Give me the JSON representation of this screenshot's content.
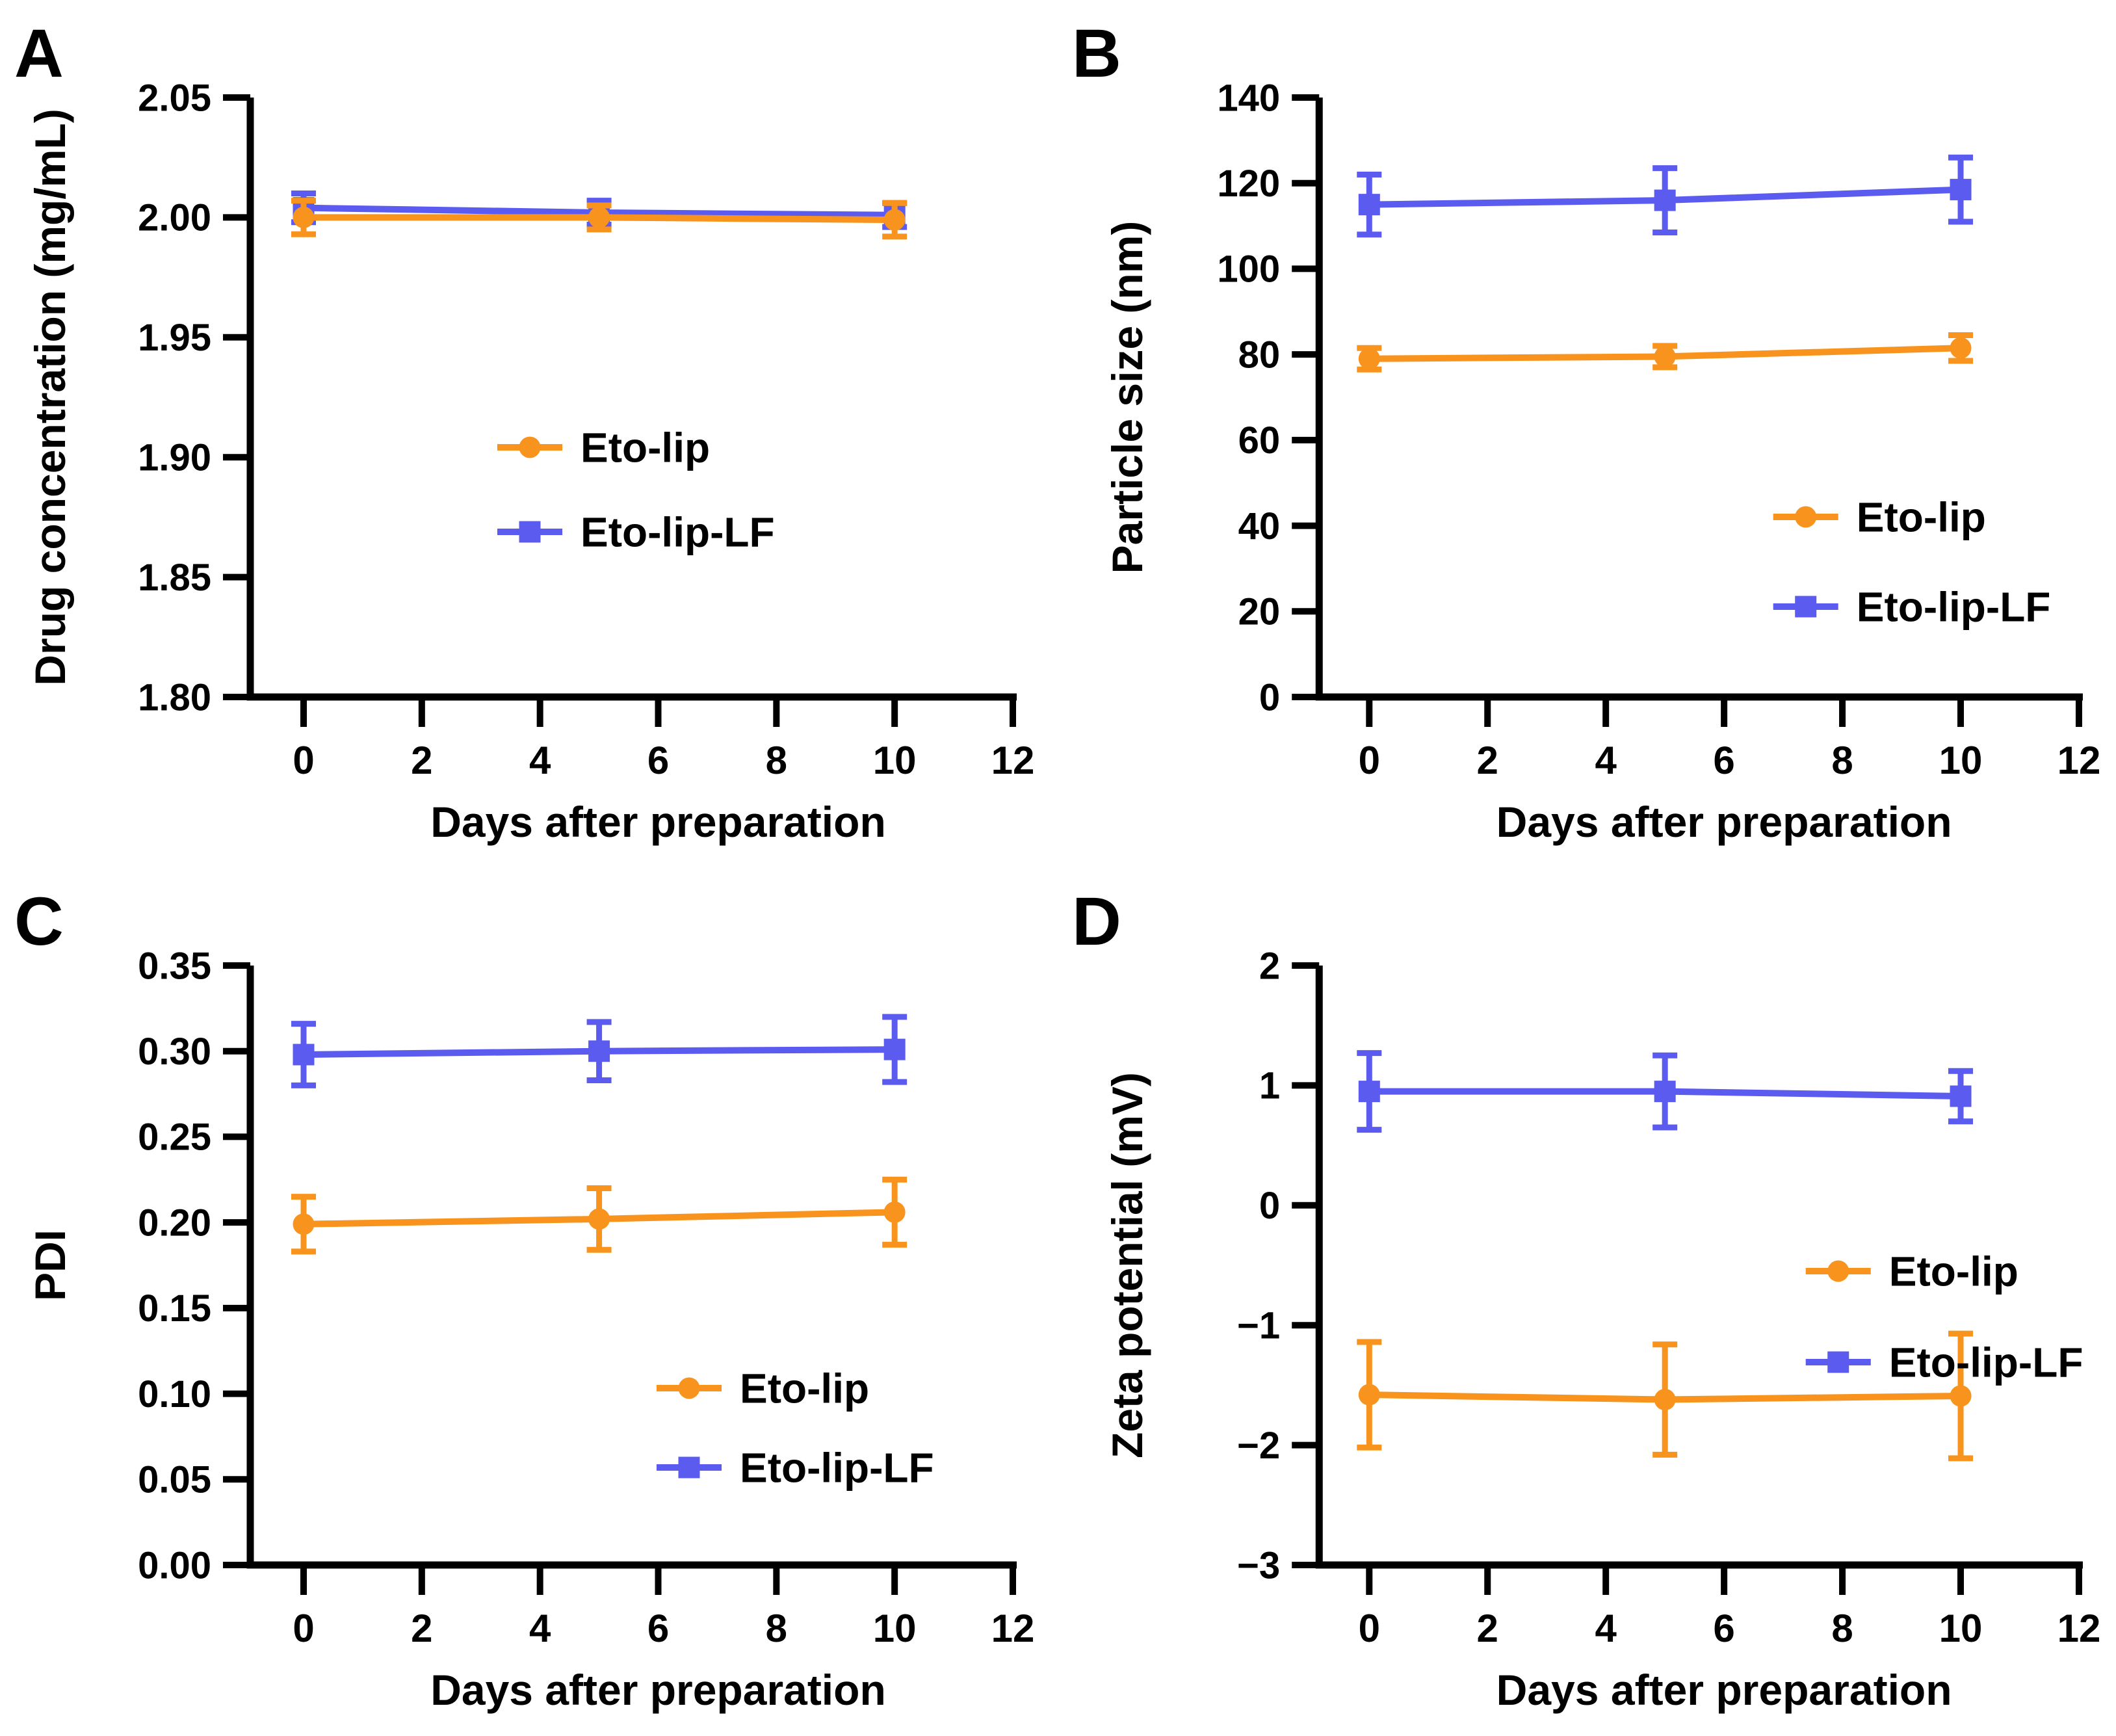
{
  "figure": {
    "background": "#ffffff",
    "axis_color": "#000000",
    "series_colors": {
      "eto_lip": "#F8941D",
      "eto_lip_lf": "#5B5BF0"
    }
  },
  "chart_data": [
    {
      "id": "A",
      "panel_label": "A",
      "type": "line",
      "x": [
        0,
        5,
        10
      ],
      "x_ticks": [
        0,
        2,
        4,
        6,
        8,
        10,
        12
      ],
      "x_tick_labels": [
        "0",
        "2",
        "4",
        "6",
        "8",
        "10",
        "12"
      ],
      "xlabel": "Days after preparation",
      "ylabel": "Drug concentration (mg/mL)",
      "ylim": [
        1.8,
        2.05
      ],
      "y_ticks": [
        1.8,
        1.85,
        1.9,
        1.95,
        2.0,
        2.05
      ],
      "y_tick_labels": [
        "1.80",
        "1.85",
        "1.90",
        "1.95",
        "2.00",
        "2.05"
      ],
      "grid": false,
      "legend_position": "inside-right-middle",
      "series": [
        {
          "name": "Eto-lip",
          "marker": "circle",
          "color": "#F8941D",
          "values": [
            2.0,
            2.0,
            1.999
          ],
          "errors": [
            0.007,
            0.005,
            0.007
          ]
        },
        {
          "name": "Eto-lip-LF",
          "marker": "square",
          "color": "#5B5BF0",
          "values": [
            2.004,
            2.002,
            2.001
          ],
          "errors": [
            0.006,
            0.005,
            0.005
          ]
        }
      ]
    },
    {
      "id": "B",
      "panel_label": "B",
      "type": "line",
      "x": [
        0,
        5,
        10
      ],
      "x_ticks": [
        0,
        2,
        4,
        6,
        8,
        10,
        12
      ],
      "x_tick_labels": [
        "0",
        "2",
        "4",
        "6",
        "8",
        "10",
        "12"
      ],
      "xlabel": "Days after preparation",
      "ylabel": "Particle size (nm)",
      "ylim": [
        0,
        140
      ],
      "y_ticks": [
        0,
        20,
        40,
        60,
        80,
        100,
        120,
        140
      ],
      "y_tick_labels": [
        "0",
        "20",
        "40",
        "60",
        "80",
        "100",
        "120",
        "140"
      ],
      "grid": false,
      "legend_position": "inside-right-lower",
      "series": [
        {
          "name": "Eto-lip",
          "marker": "circle",
          "color": "#F8941D",
          "values": [
            79,
            79.5,
            81.5
          ],
          "errors": [
            2.5,
            2.5,
            3
          ]
        },
        {
          "name": "Eto-lip-LF",
          "marker": "square",
          "color": "#5B5BF0",
          "values": [
            115,
            116,
            118.5
          ],
          "errors": [
            7,
            7.5,
            7.5
          ]
        }
      ]
    },
    {
      "id": "C",
      "panel_label": "C",
      "type": "line",
      "x": [
        0,
        5,
        10
      ],
      "x_ticks": [
        0,
        2,
        4,
        6,
        8,
        10,
        12
      ],
      "x_tick_labels": [
        "0",
        "2",
        "4",
        "6",
        "8",
        "10",
        "12"
      ],
      "xlabel": "Days after preparation",
      "ylabel": "PDI",
      "ylim": [
        0.0,
        0.35
      ],
      "y_ticks": [
        0.0,
        0.05,
        0.1,
        0.15,
        0.2,
        0.25,
        0.3,
        0.35
      ],
      "y_tick_labels": [
        "0.00",
        "0.05",
        "0.10",
        "0.15",
        "0.20",
        "0.25",
        "0.30",
        "0.35"
      ],
      "grid": false,
      "legend_position": "inside-right-lower",
      "series": [
        {
          "name": "Eto-lip",
          "marker": "circle",
          "color": "#F8941D",
          "values": [
            0.199,
            0.202,
            0.206
          ],
          "errors": [
            0.016,
            0.018,
            0.019
          ]
        },
        {
          "name": "Eto-lip-LF",
          "marker": "square",
          "color": "#5B5BF0",
          "values": [
            0.298,
            0.3,
            0.301
          ],
          "errors": [
            0.018,
            0.017,
            0.019
          ]
        }
      ]
    },
    {
      "id": "D",
      "panel_label": "D",
      "type": "line",
      "x": [
        0,
        5,
        10
      ],
      "x_ticks": [
        0,
        2,
        4,
        6,
        8,
        10,
        12
      ],
      "x_tick_labels": [
        "0",
        "2",
        "4",
        "6",
        "8",
        "10",
        "12"
      ],
      "xlabel": "Days after preparation",
      "ylabel": "Zeta potential (mV)",
      "ylim": [
        -3,
        2
      ],
      "y_ticks": [
        -3,
        -2,
        -1,
        0,
        1,
        2
      ],
      "y_tick_labels": [
        "−3",
        "−2",
        "−1",
        "0",
        "1",
        "2"
      ],
      "grid": false,
      "legend_position": "inside-right-middle",
      "series": [
        {
          "name": "Eto-lip",
          "marker": "circle",
          "color": "#F8941D",
          "values": [
            -1.58,
            -1.62,
            -1.59
          ],
          "errors": [
            0.44,
            0.46,
            0.52
          ]
        },
        {
          "name": "Eto-lip-LF",
          "marker": "square",
          "color": "#5B5BF0",
          "values": [
            0.95,
            0.95,
            0.91
          ],
          "errors": [
            0.32,
            0.3,
            0.21
          ]
        }
      ]
    }
  ]
}
